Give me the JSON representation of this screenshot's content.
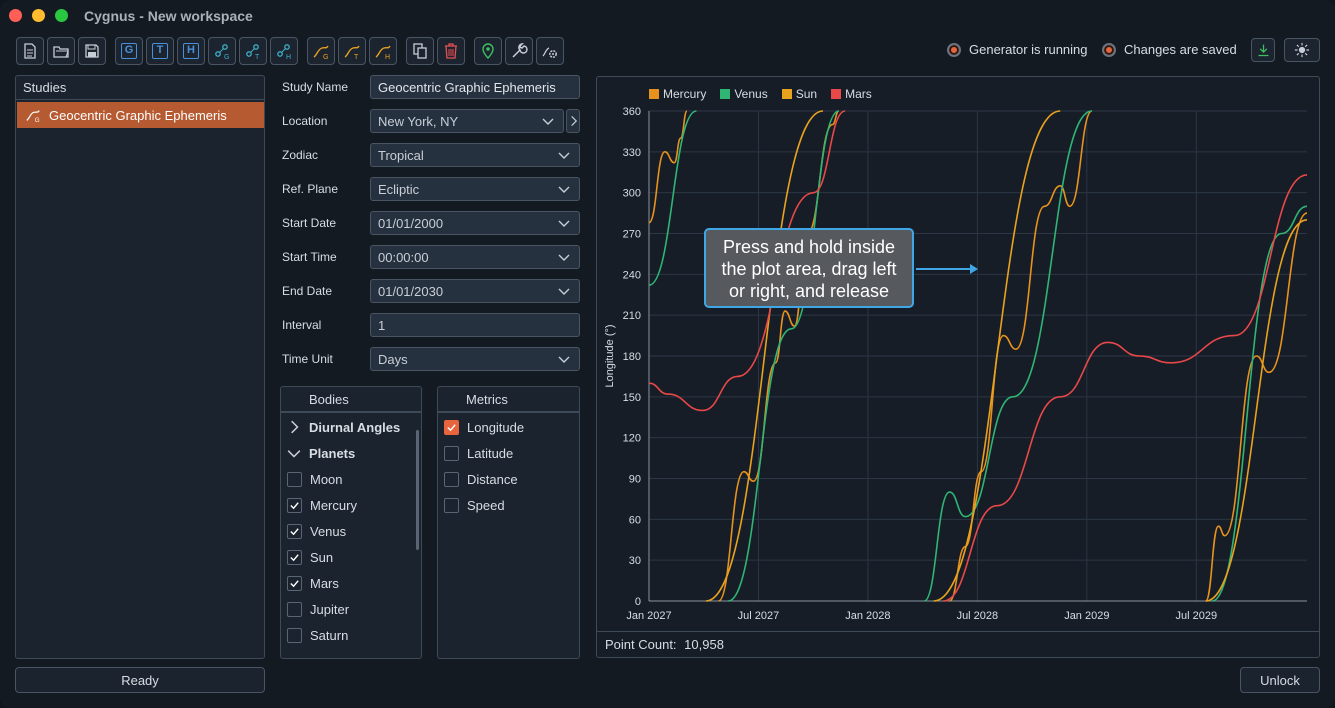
{
  "window": {
    "title": "Cygnus - New workspace"
  },
  "toolbar": {
    "buttons": [
      {
        "name": "new-file-button",
        "icon": "file-icon"
      },
      {
        "name": "open-folder-button",
        "icon": "folder-icon"
      },
      {
        "name": "save-button",
        "icon": "save-icon"
      },
      {
        "name": "g-button",
        "letter": "G"
      },
      {
        "name": "t-button",
        "letter": "T"
      },
      {
        "name": "h-button",
        "letter": "H"
      },
      {
        "name": "graph-g-button",
        "icon": "graph-g-icon"
      },
      {
        "name": "graph-t-button",
        "icon": "graph-t-icon"
      },
      {
        "name": "graph-h-button",
        "icon": "graph-h-icon"
      },
      {
        "name": "chart-g-button",
        "icon": "chart-g-icon"
      },
      {
        "name": "chart-t-button",
        "icon": "chart-t-icon"
      },
      {
        "name": "chart-h-button",
        "icon": "chart-h-icon"
      },
      {
        "name": "copy-button",
        "icon": "copy-icon"
      },
      {
        "name": "delete-button",
        "icon": "trash-icon"
      },
      {
        "name": "location-button",
        "icon": "map-pin-icon"
      },
      {
        "name": "tools-button",
        "icon": "wrench-icon"
      },
      {
        "name": "settings-button",
        "icon": "gear-chart-icon"
      }
    ]
  },
  "status": {
    "generator": "Generator is running",
    "changes": "Changes are saved"
  },
  "studies": {
    "header": "Studies",
    "items": [
      {
        "label": "Geocentric Graphic Ephemeris"
      }
    ]
  },
  "ready_label": "Ready",
  "unlock_label": "Unlock",
  "form": {
    "study_name": {
      "label": "Study Name",
      "value": "Geocentric Graphic Ephemeris"
    },
    "location": {
      "label": "Location",
      "value": "New York, NY"
    },
    "zodiac": {
      "label": "Zodiac",
      "value": "Tropical"
    },
    "ref_plane": {
      "label": "Ref. Plane",
      "value": "Ecliptic"
    },
    "start_date": {
      "label": "Start Date",
      "value": "01/01/2000"
    },
    "start_time": {
      "label": "Start Time",
      "value": "00:00:00"
    },
    "end_date": {
      "label": "End Date",
      "value": "01/01/2030"
    },
    "interval": {
      "label": "Interval",
      "value": "1"
    },
    "time_unit": {
      "label": "Time Unit",
      "value": "Days"
    }
  },
  "bodies": {
    "header": "Bodies",
    "groups": [
      {
        "label": "Diurnal Angles"
      },
      {
        "label": "Planets"
      }
    ],
    "items": [
      {
        "label": "Moon",
        "checked": false
      },
      {
        "label": "Mercury",
        "checked": true
      },
      {
        "label": "Venus",
        "checked": true
      },
      {
        "label": "Sun",
        "checked": true
      },
      {
        "label": "Mars",
        "checked": true
      },
      {
        "label": "Jupiter",
        "checked": false
      },
      {
        "label": "Saturn",
        "checked": false
      }
    ]
  },
  "metrics": {
    "header": "Metrics",
    "items": [
      {
        "label": "Longitude",
        "checked": true
      },
      {
        "label": "Latitude",
        "checked": false
      },
      {
        "label": "Distance",
        "checked": false
      },
      {
        "label": "Speed",
        "checked": false
      }
    ]
  },
  "chart_footer": {
    "label": "Point Count:",
    "value": "10,958"
  },
  "tooltip": {
    "line1": "Press and hold inside",
    "line2": "the plot area, drag left",
    "line3": "or right, and release"
  },
  "colors": {
    "accent": "#b65a32",
    "mercury": "#e8921e",
    "venus": "#2fb574",
    "sun": "#e8a21e",
    "mars": "#e84848"
  },
  "chart_data": {
    "type": "line",
    "ylabel": "Longitude (°)",
    "xlabel": "",
    "ylim": [
      0,
      360
    ],
    "yticks": [
      0,
      30,
      60,
      90,
      120,
      150,
      180,
      210,
      240,
      270,
      300,
      330,
      360
    ],
    "xticks": [
      "Jan 2027",
      "Jul 2027",
      "Jan 2028",
      "Jul 2028",
      "Jan 2029",
      "Jul 2029"
    ],
    "legend_position": "top-left",
    "grid": true,
    "series": [
      {
        "name": "Mercury",
        "color": "#e8921e",
        "points": [
          [
            0,
            278
          ],
          [
            0.05,
            330
          ],
          [
            0.08,
            322
          ],
          [
            0.1,
            340
          ],
          [
            0.12,
            360
          ],
          [
            0.22,
            0
          ],
          [
            0.3,
            95
          ],
          [
            0.33,
            88
          ],
          [
            0.4,
            175
          ],
          [
            0.43,
            213
          ],
          [
            0.46,
            202
          ],
          [
            0.5,
            270
          ],
          [
            0.58,
            350
          ],
          [
            0.6,
            360
          ],
          [
            0.95,
            0
          ],
          [
            1.0,
            40
          ],
          [
            1.05,
            95
          ],
          [
            1.12,
            195
          ],
          [
            1.16,
            185
          ],
          [
            1.25,
            290
          ],
          [
            1.3,
            305
          ],
          [
            1.33,
            290
          ],
          [
            1.4,
            360
          ],
          [
            1.76,
            0
          ],
          [
            1.8,
            55
          ],
          [
            1.82,
            48
          ],
          [
            1.92,
            180
          ],
          [
            1.96,
            168
          ],
          [
            2.08,
            285
          ]
        ]
      },
      {
        "name": "Venus",
        "color": "#2fb574",
        "points": [
          [
            0,
            232
          ],
          [
            0.15,
            360
          ],
          [
            0.25,
            0
          ],
          [
            0.45,
            200
          ],
          [
            0.6,
            360
          ],
          [
            0.87,
            0
          ],
          [
            0.95,
            80
          ],
          [
            1.0,
            62
          ],
          [
            1.15,
            150
          ],
          [
            1.4,
            360
          ],
          [
            1.78,
            0
          ],
          [
            2.0,
            270
          ],
          [
            2.08,
            290
          ]
        ]
      },
      {
        "name": "Sun",
        "color": "#e8a21e",
        "points": [
          [
            0.18,
            0
          ],
          [
            0.55,
            360
          ],
          [
            0.9,
            0
          ],
          [
            1.3,
            360
          ],
          [
            1.76,
            0
          ],
          [
            2.08,
            280
          ]
        ]
      },
      {
        "name": "Mars",
        "color": "#e84848",
        "points": [
          [
            0,
            160
          ],
          [
            0.06,
            152
          ],
          [
            0.17,
            140
          ],
          [
            0.28,
            165
          ],
          [
            0.52,
            300
          ],
          [
            0.62,
            360
          ],
          [
            0.93,
            0
          ],
          [
            1.1,
            70
          ],
          [
            1.3,
            150
          ],
          [
            1.45,
            190
          ],
          [
            1.55,
            180
          ],
          [
            1.65,
            175
          ],
          [
            1.85,
            195
          ],
          [
            2.08,
            313
          ]
        ]
      }
    ]
  }
}
